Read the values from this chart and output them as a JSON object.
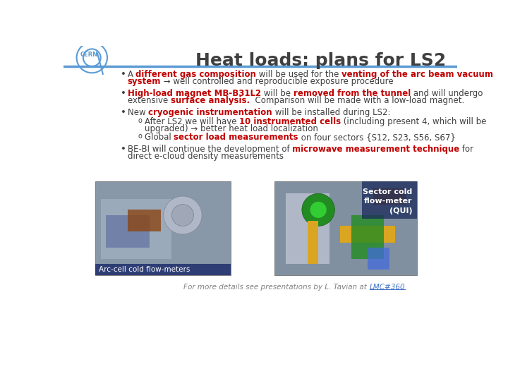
{
  "title": "Heat loads: plans for LS2",
  "title_color": "#404040",
  "title_fontsize": 18,
  "header_line_color": "#5B9BD5",
  "background_color": "#FFFFFF",
  "cern_logo_color": "#5B9BD5",
  "red": "#C00000",
  "text_color": "#404040",
  "caption1": "Arc-cell cold flow-meters",
  "caption1_color": "#FFFFFF",
  "caption2_lines": [
    "Sector cold",
    "flow-meter",
    "(QUI)"
  ],
  "caption2_color": "#FFFFFF",
  "footer_text": "For more details see presentations by L. Tavian at ",
  "footer_link": "LMC#360",
  "footer_color": "#808080",
  "footer_link_color": "#4472C4",
  "font_size": 8.5
}
